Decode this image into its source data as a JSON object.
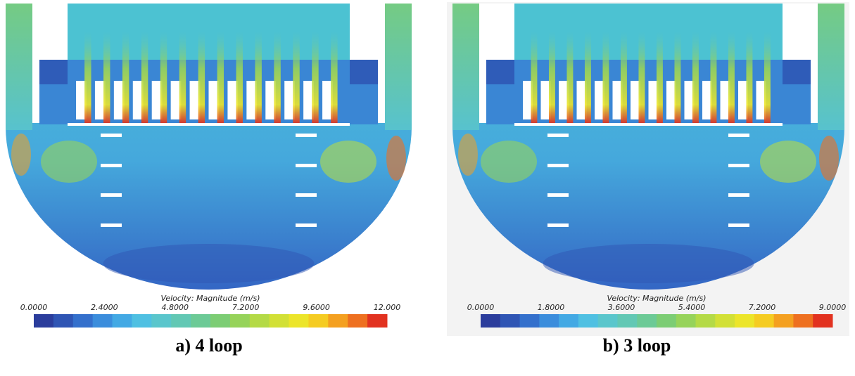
{
  "panels": [
    {
      "caption": "a) 4 loop",
      "colorbar": {
        "title": "Velocity: Magnitude (m/s)",
        "range": [
          0,
          12
        ],
        "ticks": [
          {
            "value": 0,
            "label": "0.0000"
          },
          {
            "value": 2.4,
            "label": "2.4000"
          },
          {
            "value": 4.8,
            "label": "4.8000"
          },
          {
            "value": 7.2,
            "label": "7.2000"
          },
          {
            "value": 9.6,
            "label": "9.6000"
          },
          {
            "value": 12,
            "label": "12.000"
          }
        ]
      }
    },
    {
      "caption": "b) 3 loop",
      "colorbar": {
        "title": "Velocity: Magnitude (m/s)",
        "range": [
          0,
          9
        ],
        "ticks": [
          {
            "value": 0,
            "label": "0.0000"
          },
          {
            "value": 1.8,
            "label": "1.8000"
          },
          {
            "value": 3.6,
            "label": "3.6000"
          },
          {
            "value": 5.4,
            "label": "5.4000"
          },
          {
            "value": 7.2,
            "label": "7.2000"
          },
          {
            "value": 9,
            "label": "9.0000"
          }
        ]
      }
    }
  ],
  "colormap": [
    "#2b3d9c",
    "#2f55b4",
    "#3470cc",
    "#3b8ddc",
    "#43a9e4",
    "#4fc0e2",
    "#5ac6cc",
    "#62c8b4",
    "#6cca96",
    "#7ccd74",
    "#96d35a",
    "#b4da46",
    "#d2e036",
    "#ece52a",
    "#f5cc22",
    "#f4a020",
    "#ee7020",
    "#e23220"
  ]
}
